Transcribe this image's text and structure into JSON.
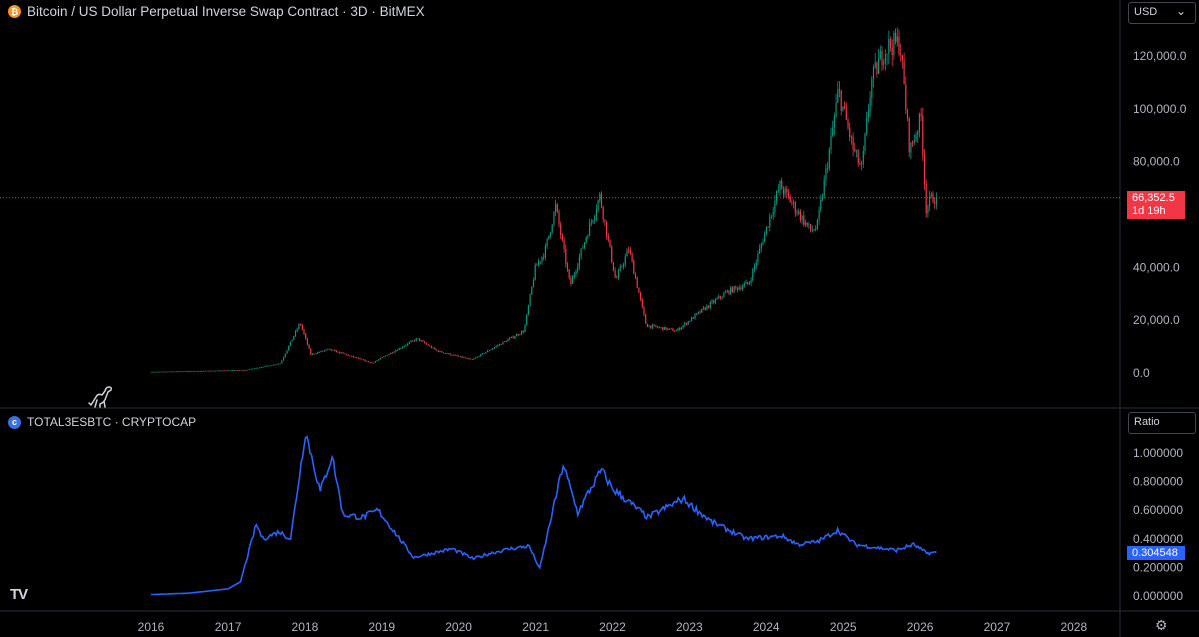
{
  "header": {
    "title": "Bitcoin / US Dollar Perpetual Inverse Swap Contract · 3D · BitMEX",
    "icon": "bitcoin-icon"
  },
  "sub_header": {
    "title": "TOTAL3ESBTC · CRYPTOCAP",
    "icon": "cryptocap-icon"
  },
  "controls": {
    "currency": "USD",
    "scale": "Ratio"
  },
  "price_badge": {
    "price": "66,352.5",
    "countdown": "1d 19h"
  },
  "ratio_badge": {
    "value": "0.304548"
  },
  "colors": {
    "up": "#089981",
    "down": "#f23645",
    "line": "#2962ff",
    "background": "#000000"
  },
  "chart_data": [
    {
      "type": "line",
      "title": "Bitcoin / US Dollar Perpetual Inverse Swap Contract · 3D · BitMEX",
      "style": "candlestick",
      "x": [
        "2016-01-01",
        "2016-07-01",
        "2017-01-01",
        "2017-04-01",
        "2017-07-01",
        "2017-09-15",
        "2017-12-17",
        "2018-02-06",
        "2018-05-01",
        "2018-11-25",
        "2019-06-26",
        "2019-09-30",
        "2020-03-12",
        "2020-08-01",
        "2020-11-15",
        "2021-01-08",
        "2021-02-22",
        "2021-04-14",
        "2021-06-22",
        "2021-09-07",
        "2021-11-10",
        "2022-01-24",
        "2022-03-28",
        "2022-06-18",
        "2022-11-09",
        "2023-03-15",
        "2023-07-14",
        "2023-10-20",
        "2024-03-14",
        "2024-08-05",
        "2024-09-06",
        "2024-11-12",
        "2024-12-17",
        "2025-02-28",
        "2025-04-07",
        "2025-05-22",
        "2025-07-14",
        "2025-08-14",
        "2025-10-06",
        "2025-11-21",
        "2026-01-14",
        "2026-02-06",
        "2026-03-01",
        "2026-03-20"
      ],
      "values": [
        430,
        670,
        1000,
        1100,
        2500,
        3700,
        19000,
        7000,
        9000,
        3800,
        13000,
        8300,
        5000,
        11300,
        16000,
        40000,
        46000,
        63000,
        33000,
        52000,
        67000,
        35000,
        47000,
        18000,
        16000,
        24000,
        31000,
        34000,
        71000,
        54000,
        55000,
        88000,
        107000,
        84000,
        77000,
        110000,
        121000,
        124000,
        125000,
        84000,
        97000,
        62000,
        66000,
        66352.5
      ],
      "xlabel": "",
      "ylabel": "",
      "ylim": [
        -5000,
        130000
      ],
      "yticks": [
        "120,000.0",
        "100,000.0",
        "80,000.0",
        "60,000.0",
        "40,000.0",
        "20,000.0",
        "0.0"
      ],
      "last_price": 66352.5
    },
    {
      "type": "line",
      "title": "TOTAL3ESBTC · CRYPTOCAP",
      "x": [
        "2016-01-01",
        "2016-07-01",
        "2017-01-01",
        "2017-03-01",
        "2017-05-15",
        "2017-06-15",
        "2017-09-01",
        "2017-10-25",
        "2018-01-04",
        "2018-03-15",
        "2018-05-10",
        "2018-07-01",
        "2018-10-01",
        "2018-12-15",
        "2019-06-01",
        "2019-09-01",
        "2019-12-01",
        "2020-03-12",
        "2020-06-01",
        "2020-09-01",
        "2020-12-01",
        "2021-01-20",
        "2021-05-12",
        "2021-07-20",
        "2021-09-07",
        "2021-11-10",
        "2022-01-01",
        "2022-06-18",
        "2022-12-01",
        "2023-04-15",
        "2023-10-01",
        "2024-03-15",
        "2024-06-01",
        "2024-09-01",
        "2024-12-05",
        "2025-03-01",
        "2025-06-01",
        "2025-09-10",
        "2025-12-01",
        "2026-02-01",
        "2026-03-20"
      ],
      "values": [
        0.01,
        0.02,
        0.05,
        0.1,
        0.5,
        0.4,
        0.45,
        0.4,
        1.15,
        0.73,
        0.98,
        0.57,
        0.55,
        0.6,
        0.27,
        0.3,
        0.33,
        0.26,
        0.3,
        0.33,
        0.35,
        0.19,
        0.92,
        0.58,
        0.72,
        0.88,
        0.75,
        0.55,
        0.68,
        0.52,
        0.4,
        0.42,
        0.36,
        0.38,
        0.46,
        0.36,
        0.34,
        0.32,
        0.36,
        0.3,
        0.304548
      ],
      "xlabel": "",
      "ylabel": "",
      "ylim": [
        -0.03,
        1.25
      ],
      "yticks": [
        "1.000000",
        "0.800000",
        "0.600000",
        "0.400000",
        "0.200000",
        "0.000000"
      ],
      "last_value": 0.304548
    }
  ],
  "x_axis": {
    "ticks": [
      "2016",
      "2017",
      "2018",
      "2019",
      "2020",
      "2021",
      "2022",
      "2023",
      "2024",
      "2025",
      "2026",
      "2027",
      "2028"
    ]
  }
}
